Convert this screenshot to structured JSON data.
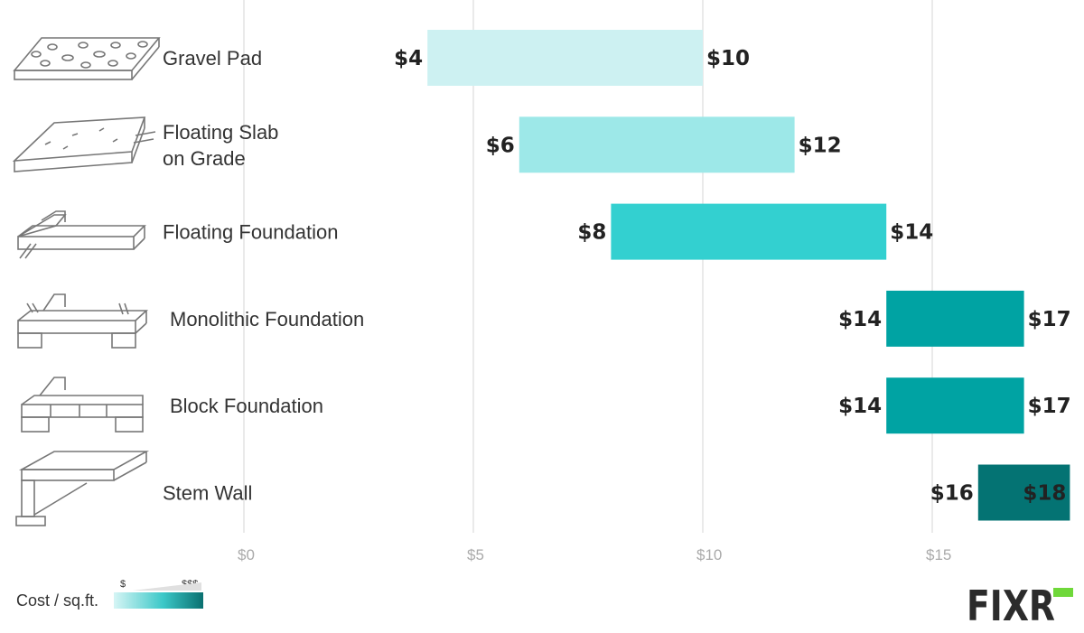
{
  "chart_data": {
    "type": "bar",
    "orientation": "horizontal-range",
    "title": "",
    "xlabel": "",
    "ylabel": "",
    "xlim": [
      0,
      18
    ],
    "x_ticks": [
      0,
      5,
      10,
      15
    ],
    "x_tick_labels": [
      "$0",
      "$5",
      "$10",
      "$15"
    ],
    "grid": true,
    "categories": [
      {
        "label_lines": [
          "Gravel Pad"
        ],
        "icon": "gravel-pad-icon",
        "low": 4,
        "high": 10,
        "low_label": "$4",
        "high_label": "$10",
        "color": "#cdf1f2"
      },
      {
        "label_lines": [
          "Floating Slab",
          "on Grade"
        ],
        "icon": "floating-slab-icon",
        "low": 6,
        "high": 12,
        "low_label": "$6",
        "high_label": "$12",
        "color": "#9de8e8"
      },
      {
        "label_lines": [
          "Floating Foundation"
        ],
        "icon": "floating-foundation-icon",
        "low": 8,
        "high": 14,
        "low_label": "$8",
        "high_label": "$14",
        "color": "#33d0d0"
      },
      {
        "label_lines": [
          "Monolithic Foundation"
        ],
        "icon": "monolithic-foundation-icon",
        "low": 14,
        "high": 17,
        "low_label": "$14",
        "high_label": "$17",
        "color": "#00a3a3"
      },
      {
        "label_lines": [
          "Block Foundation"
        ],
        "icon": "block-foundation-icon",
        "low": 14,
        "high": 17,
        "low_label": "$14",
        "high_label": "$17",
        "color": "#00a3a3"
      },
      {
        "label_lines": [
          "Stem Wall"
        ],
        "icon": "stem-wall-icon",
        "low": 16,
        "high": 18,
        "low_label": "$16",
        "high_label": "$18",
        "color": "#047373"
      }
    ]
  },
  "legend": {
    "label": "Cost / sq.ft.",
    "min_label": "$",
    "max_label": "$$$"
  },
  "logo": {
    "text": "FIXR"
  }
}
